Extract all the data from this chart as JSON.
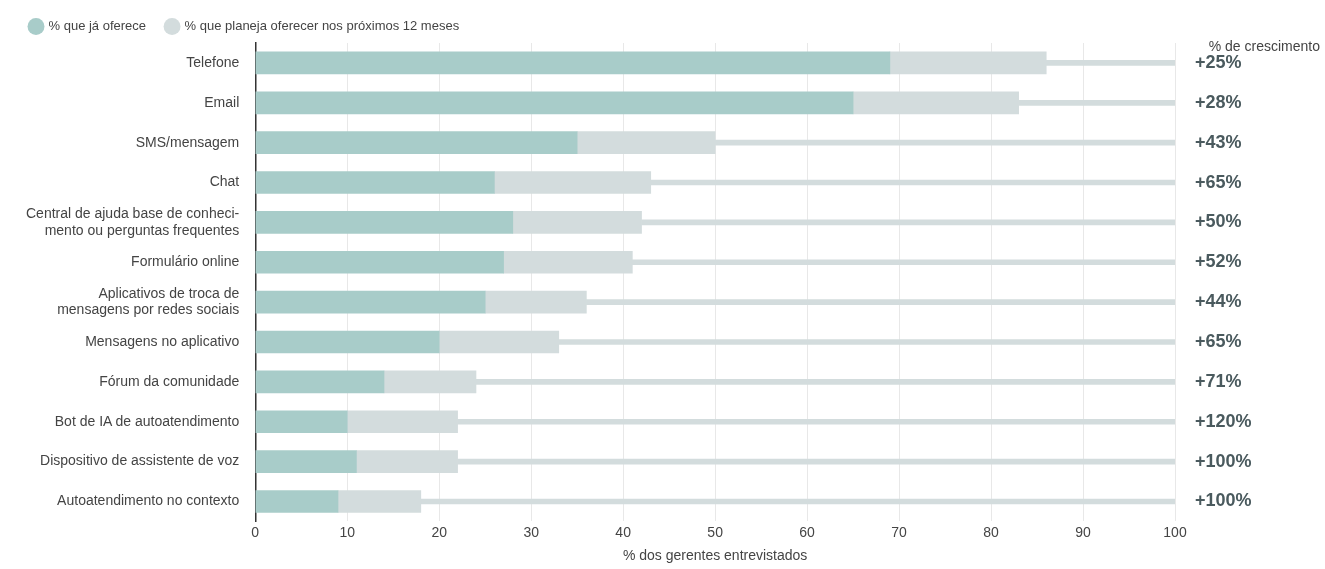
{
  "chart_data": {
    "type": "bar",
    "orientation": "horizontal",
    "stacked": true,
    "categories": [
      "Telefone",
      "Email",
      "SMS/mensagem",
      "Chat",
      "Central de ajuda base de conheci-\nmento ou perguntas frequentes",
      "Formulário online",
      "Aplicativos de troca de\nmensagens por redes sociais",
      "Mensagens no aplicativo",
      "Fórum da comunidade",
      "Bot de IA de autoatendimento",
      "Dispositivo de assistente de voz",
      "Autoatendimento no contexto"
    ],
    "series": [
      {
        "name": "% que já oferece",
        "color": "#a8ccc9",
        "values": [
          69,
          65,
          35,
          26,
          28,
          27,
          25,
          20,
          14,
          10,
          11,
          9
        ]
      },
      {
        "name": "% que planeja oferecer nos próximos 12 meses",
        "color": "#d3dcdd",
        "values": [
          17,
          18,
          15,
          17,
          14,
          14,
          11,
          13,
          10,
          12,
          11,
          9
        ]
      },
      {
        "color": "#d3dcdd",
        "values": [
          14,
          17,
          50,
          57,
          58,
          59,
          64,
          67,
          76,
          78,
          78,
          82
        ]
      }
    ],
    "xlabel": "% dos gerentes entrevistados",
    "xlim": [
      0,
      100
    ],
    "xticks": [
      0,
      10,
      20,
      30,
      40,
      50,
      60,
      70,
      80,
      90,
      100
    ],
    "grid": "x",
    "legend": "top left",
    "annotations": [
      "% de crescimento",
      "+25%",
      "+28%",
      "+43%",
      "+65%",
      "+50%",
      "+52%",
      "+44%",
      "+65%",
      "+71%",
      "+120%",
      "+100%",
      "+100%"
    ]
  }
}
